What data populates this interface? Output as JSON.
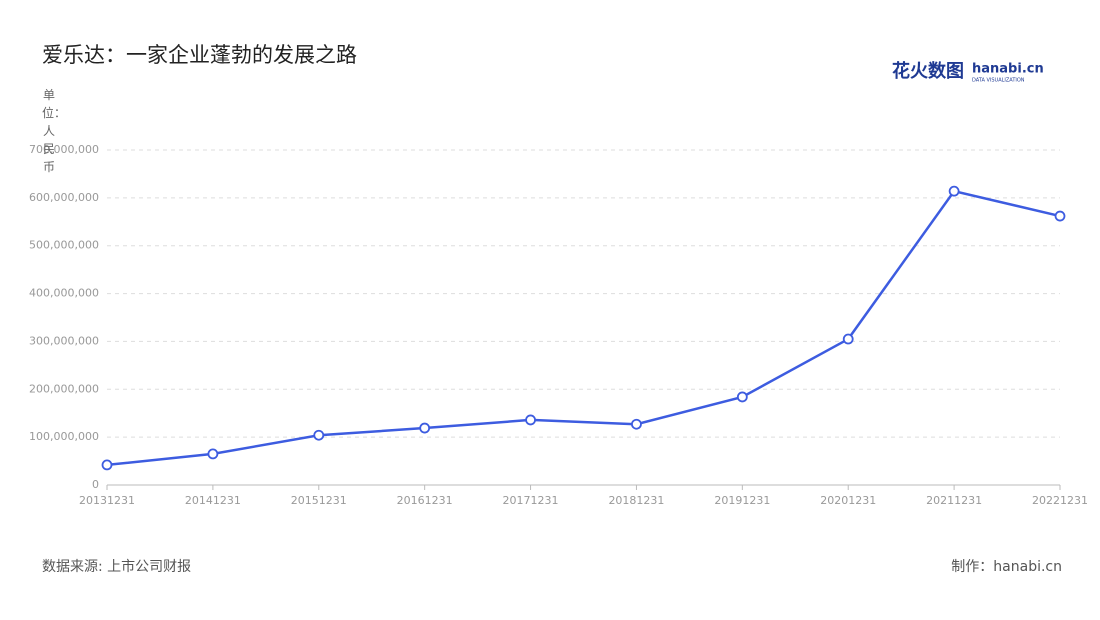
{
  "chart_data": {
    "type": "line",
    "title": "爱乐达：一家企业蓬勃的发展之路",
    "y_label": "单位：人民币",
    "source": "数据来源: 上市公司财报",
    "credit": "制作：hanabi.cn",
    "logo": {
      "name": "花火数图",
      "site": "hanabi.cn",
      "tagline": "DATA VISUALIZATION"
    },
    "categories": [
      "20131231",
      "20141231",
      "20151231",
      "20161231",
      "20171231",
      "20181231",
      "20191231",
      "20201231",
      "20211231",
      "20221231"
    ],
    "values": [
      42000000,
      65000000,
      104000000,
      119000000,
      136000000,
      127000000,
      184000000,
      305000000,
      614000000,
      562000000
    ],
    "color": "#3d5ce0",
    "ylim": [
      0,
      700000000
    ],
    "yticks": [
      0,
      {
        "value": 100000000,
        "label": "100,000,000"
      },
      {
        "value": 200000000,
        "label": "200,000,000"
      },
      {
        "value": 300000000,
        "label": "300,000,000"
      },
      {
        "value": 400000000,
        "label": "400,000,000"
      },
      {
        "value": 500000000,
        "label": "500,000,000"
      },
      {
        "value": 600000000,
        "label": "600,000,000"
      },
      {
        "value": 700000000,
        "label": "700,000,000"
      }
    ],
    "grid": true
  }
}
